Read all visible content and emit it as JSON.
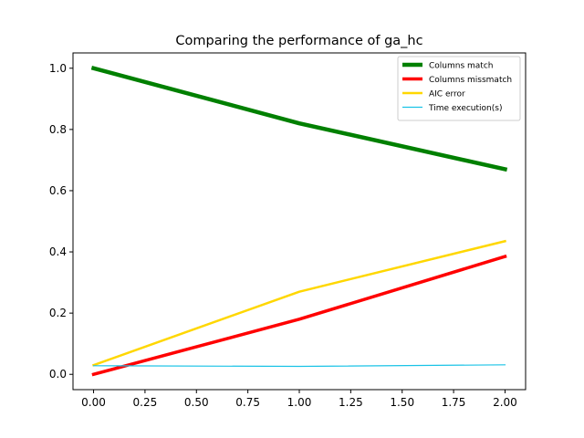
{
  "chart_data": {
    "type": "line",
    "title": "Comparing the performance of ga_hc",
    "xlabel": "",
    "ylabel": "",
    "x": [
      0,
      1,
      2
    ],
    "xlim": [
      -0.1,
      2.1
    ],
    "ylim": [
      -0.05,
      1.05
    ],
    "x_ticks": [
      "0.00",
      "0.25",
      "0.50",
      "0.75",
      "1.00",
      "1.25",
      "1.50",
      "1.75",
      "2.00"
    ],
    "x_tick_values": [
      0,
      0.25,
      0.5,
      0.75,
      1.0,
      1.25,
      1.5,
      1.75,
      2.0
    ],
    "y_ticks": [
      "0.0",
      "0.2",
      "0.4",
      "0.6",
      "0.8",
      "1.0"
    ],
    "y_tick_values": [
      0,
      0.2,
      0.4,
      0.6,
      0.8,
      1.0
    ],
    "grid": false,
    "legend_position": "top-right",
    "series": [
      {
        "name": "Columns match",
        "values": [
          1.0,
          0.82,
          0.67
        ],
        "color": "#008000",
        "width": 4.5
      },
      {
        "name": "Columns missmatch",
        "values": [
          0.0,
          0.18,
          0.385
        ],
        "color": "#ff0000",
        "width": 3.5
      },
      {
        "name": "AIC error",
        "values": [
          0.03,
          0.27,
          0.435
        ],
        "color": "#ffd700",
        "width": 2.5
      },
      {
        "name": "Time execution(s)",
        "values": [
          0.028,
          0.026,
          0.031
        ],
        "color": "#1ac3e6",
        "width": 1.2
      }
    ]
  }
}
